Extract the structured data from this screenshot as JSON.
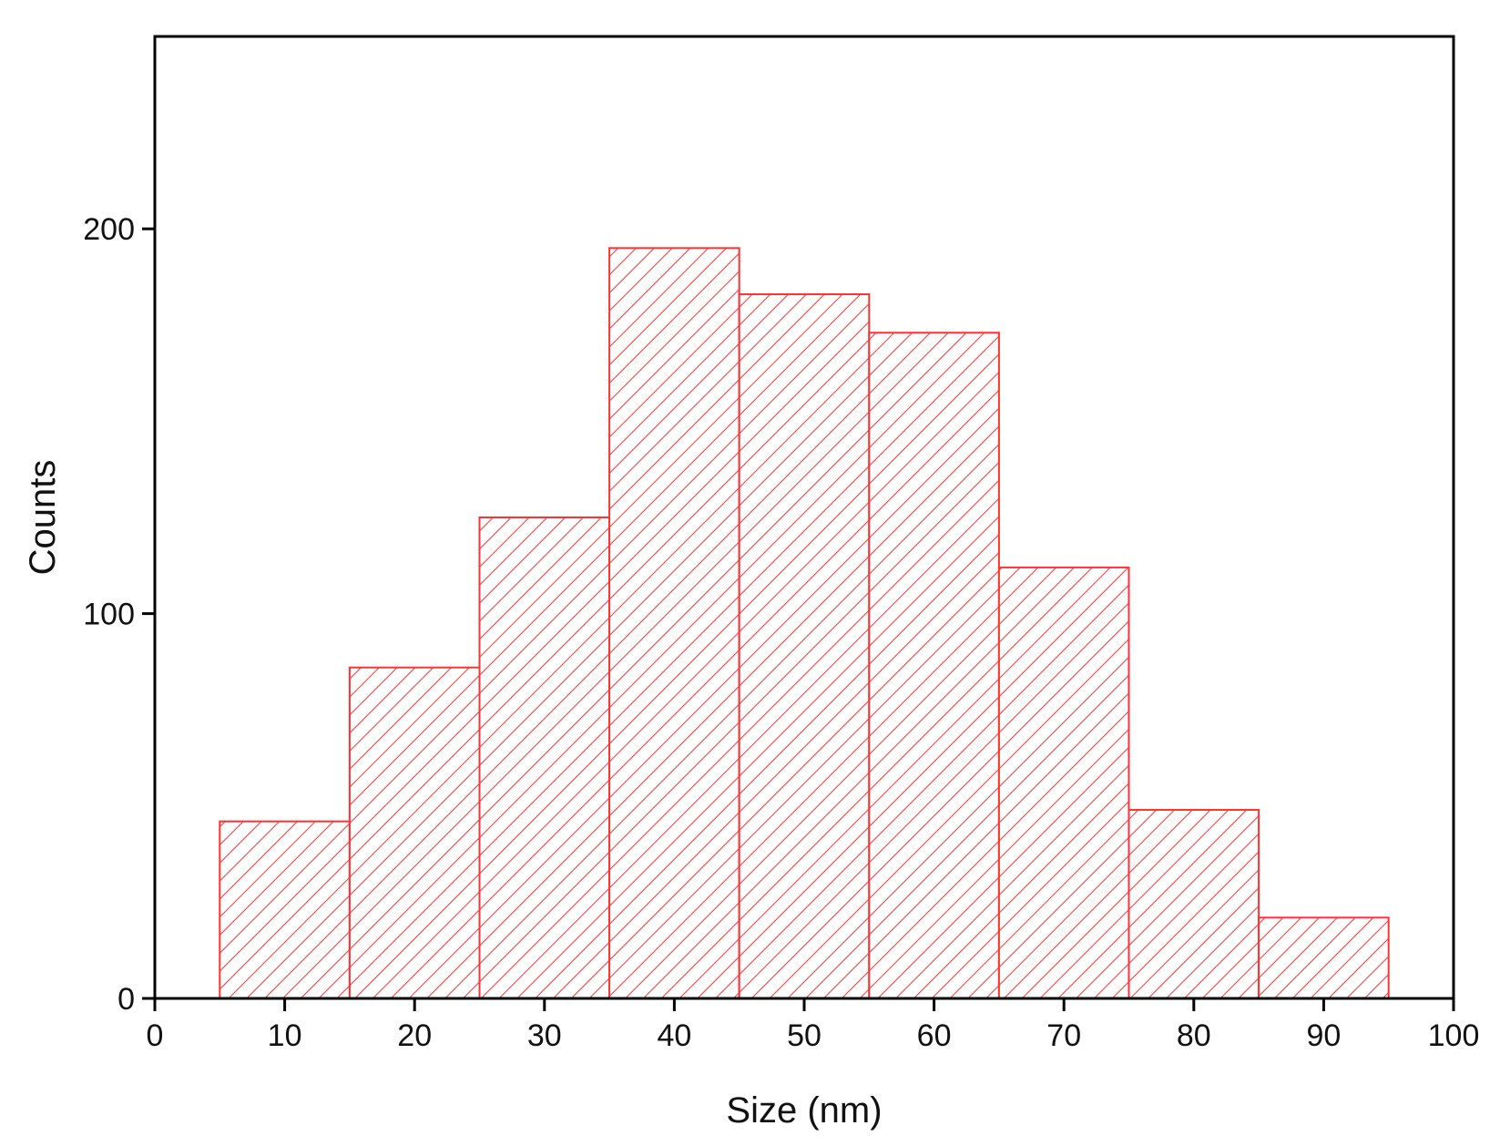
{
  "chart_data": {
    "type": "bar",
    "title": "",
    "xlabel": "Size (nm)",
    "ylabel": "Counts",
    "xlim": [
      0,
      100
    ],
    "ylim": [
      0,
      250
    ],
    "x_ticks": [
      0,
      10,
      20,
      30,
      40,
      50,
      60,
      70,
      80,
      90,
      100
    ],
    "y_ticks": [
      0,
      100,
      200
    ],
    "bin_width": 10,
    "bins": [
      {
        "start": 5,
        "end": 15,
        "value": 46
      },
      {
        "start": 15,
        "end": 25,
        "value": 86
      },
      {
        "start": 25,
        "end": 35,
        "value": 125
      },
      {
        "start": 35,
        "end": 45,
        "value": 195
      },
      {
        "start": 45,
        "end": 55,
        "value": 183
      },
      {
        "start": 55,
        "end": 65,
        "value": 173
      },
      {
        "start": 65,
        "end": 75,
        "value": 112
      },
      {
        "start": 75,
        "end": 85,
        "value": 49
      },
      {
        "start": 85,
        "end": 95,
        "value": 21
      }
    ],
    "bar_style": "hatched",
    "bar_color": "#ff3333",
    "grid": false,
    "legend": "none"
  }
}
